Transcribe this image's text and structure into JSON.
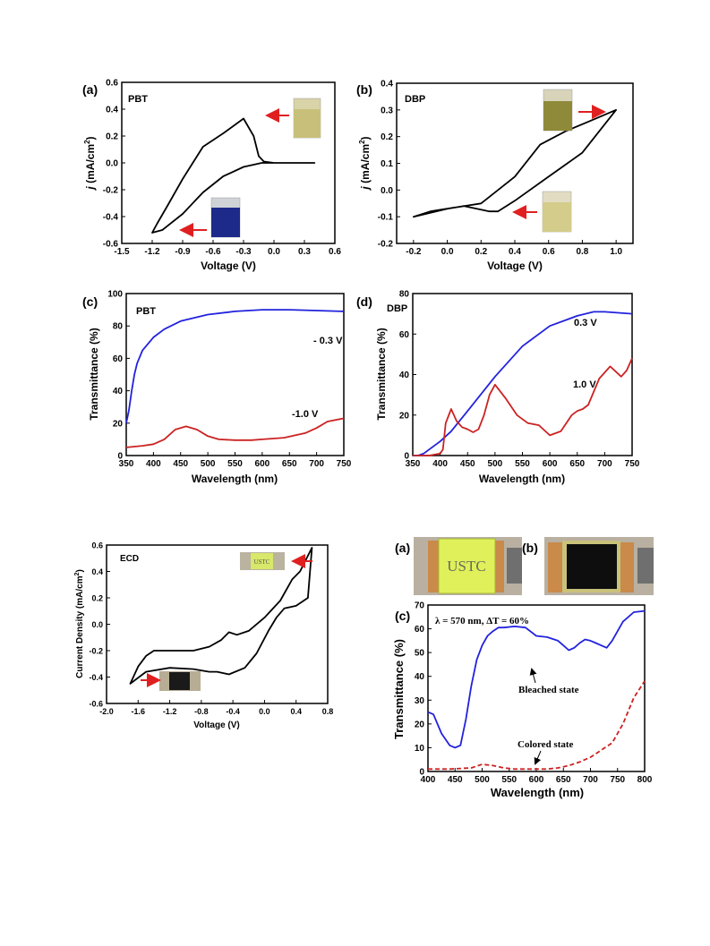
{
  "colors": {
    "axis": "#000000",
    "blue": "#2222dd",
    "red": "#cc2222",
    "arrow": "#e02020"
  },
  "chart_data": [
    {
      "id": "a",
      "type": "line",
      "panel_label": "(a)",
      "sample": "PBT",
      "xlabel": "Voltage (V)",
      "ylabel": "j (mA/cm2)",
      "xlim": [
        -1.5,
        0.6
      ],
      "ylim": [
        -0.6,
        0.6
      ],
      "xticks": [
        -1.5,
        -1.2,
        -0.9,
        -0.6,
        -0.3,
        0.0,
        0.3,
        0.6
      ],
      "xtick_labels": [
        "-1.5",
        "-1.2",
        "-0.9",
        "-0.6",
        "-0.3",
        "0.0",
        "0.3",
        "0.6"
      ],
      "yticks": [
        -0.6,
        -0.4,
        -0.2,
        0.0,
        0.2,
        0.4,
        0.6
      ],
      "ytick_labels": [
        "-0.6",
        "-0.4",
        "-0.2",
        "0.0",
        "0.2",
        "0.4",
        "0.6"
      ],
      "series": [
        {
          "color": "#000000",
          "closed": true,
          "x": [
            0.4,
            0.0,
            -0.1,
            -0.15,
            -0.2,
            -0.3,
            -0.5,
            -0.7,
            -0.9,
            -1.05,
            -1.15,
            -1.2,
            -1.1,
            -0.9,
            -0.7,
            -0.5,
            -0.3,
            -0.12,
            -0.05,
            0.0,
            0.4
          ],
          "y": [
            0.0,
            0.0,
            0.01,
            0.05,
            0.2,
            0.33,
            0.22,
            0.12,
            -0.12,
            -0.32,
            -0.45,
            -0.52,
            -0.5,
            -0.38,
            -0.22,
            -0.1,
            -0.03,
            0.0,
            0.0,
            0.0,
            0.0
          ]
        }
      ]
    },
    {
      "id": "b",
      "type": "line",
      "panel_label": "(b)",
      "sample": "DBP",
      "xlabel": "Voltage (V)",
      "ylabel": "j (mA/cm2)",
      "xlim": [
        -0.3,
        1.1
      ],
      "ylim": [
        -0.2,
        0.4
      ],
      "xticks": [
        -0.2,
        0.0,
        0.2,
        0.4,
        0.6,
        0.8,
        1.0
      ],
      "xtick_labels": [
        "-0.2",
        "0.0",
        "0.2",
        "0.4",
        "0.6",
        "0.8",
        "1.0"
      ],
      "yticks": [
        -0.2,
        -0.1,
        0.0,
        0.1,
        0.2,
        0.3,
        0.4
      ],
      "ytick_labels": [
        "-0.2",
        "-0.1",
        "0.0",
        "0.1",
        "0.2",
        "0.3",
        "0.4"
      ],
      "series": [
        {
          "color": "#000000",
          "closed": true,
          "x": [
            -0.2,
            0.0,
            0.2,
            0.4,
            0.55,
            0.7,
            0.85,
            1.0,
            0.8,
            0.6,
            0.4,
            0.3,
            0.25,
            0.1,
            -0.1,
            -0.2
          ],
          "y": [
            -0.1,
            -0.07,
            -0.05,
            0.05,
            0.17,
            0.22,
            0.26,
            0.3,
            0.14,
            0.05,
            -0.04,
            -0.08,
            -0.08,
            -0.06,
            -0.08,
            -0.1
          ]
        }
      ]
    },
    {
      "id": "c",
      "type": "line",
      "panel_label": "(c)",
      "sample": "PBT",
      "xlabel": "Wavelength (nm)",
      "ylabel": "Transmittance (%)",
      "xlim": [
        350,
        750
      ],
      "ylim": [
        0,
        100
      ],
      "xticks": [
        350,
        400,
        450,
        500,
        550,
        600,
        650,
        700,
        750
      ],
      "xtick_labels": [
        "350",
        "400",
        "450",
        "500",
        "550",
        "600",
        "650",
        "700",
        "750"
      ],
      "yticks": [
        0,
        20,
        40,
        60,
        80,
        100
      ],
      "ytick_labels": [
        "0",
        "20",
        "40",
        "60",
        "80",
        "100"
      ],
      "annotations": [
        "- 0.3 V",
        "-1.0 V"
      ],
      "series": [
        {
          "name": "- 0.3 V",
          "color": "#2222dd",
          "x": [
            350,
            355,
            360,
            365,
            370,
            380,
            400,
            420,
            450,
            500,
            550,
            600,
            650,
            700,
            750
          ],
          "y": [
            20,
            28,
            40,
            50,
            57,
            65,
            73,
            78,
            83,
            87,
            89,
            90,
            90,
            89.5,
            89
          ]
        },
        {
          "name": "-1.0 V",
          "color": "#cc2222",
          "x": [
            350,
            380,
            400,
            420,
            440,
            460,
            480,
            500,
            520,
            550,
            580,
            600,
            640,
            680,
            700,
            720,
            750
          ],
          "y": [
            5,
            6,
            7,
            10,
            16,
            18,
            16,
            12,
            10,
            9.5,
            9.5,
            10,
            11,
            14,
            17,
            21,
            23
          ]
        }
      ]
    },
    {
      "id": "d",
      "type": "line",
      "panel_label": "(d)",
      "sample": "DBP",
      "xlabel": "Wavelength (nm)",
      "ylabel": "Transmittance (%)",
      "xlim": [
        350,
        750
      ],
      "ylim": [
        0,
        80
      ],
      "xticks": [
        350,
        400,
        450,
        500,
        550,
        600,
        650,
        700,
        750
      ],
      "xtick_labels": [
        "350",
        "400",
        "450",
        "500",
        "550",
        "600",
        "650",
        "700",
        "750"
      ],
      "yticks": [
        0,
        20,
        40,
        60,
        80
      ],
      "ytick_labels": [
        "0",
        "20",
        "40",
        "60",
        "80"
      ],
      "annotations": [
        "0.3 V",
        "1.0 V"
      ],
      "series": [
        {
          "name": "0.3 V",
          "color": "#2222dd",
          "x": [
            350,
            360,
            370,
            380,
            400,
            420,
            450,
            500,
            550,
            600,
            650,
            680,
            700,
            750
          ],
          "y": [
            0,
            0,
            1,
            3,
            7,
            12,
            22,
            39,
            54,
            64,
            69,
            71,
            71,
            70
          ]
        },
        {
          "name": "1.0 V",
          "color": "#cc2222",
          "x": [
            350,
            380,
            400,
            405,
            410,
            420,
            430,
            440,
            450,
            460,
            470,
            480,
            490,
            500,
            520,
            540,
            560,
            580,
            600,
            620,
            640,
            650,
            660,
            670,
            690,
            710,
            730,
            740,
            750
          ],
          "y": [
            0,
            0,
            1,
            3,
            16,
            23,
            17,
            14,
            13,
            11.5,
            13,
            20,
            30,
            35,
            28,
            20,
            16,
            15,
            10,
            12,
            20,
            22,
            23,
            25,
            38,
            44,
            39,
            42,
            48
          ]
        }
      ]
    },
    {
      "id": "ecd",
      "type": "line",
      "sample": "ECD",
      "xlabel": "Voltage (V)",
      "ylabel": "Current Density (mA/cm2)",
      "xlim": [
        -2.0,
        0.8
      ],
      "ylim": [
        -0.6,
        0.6
      ],
      "xticks": [
        -2.0,
        -1.6,
        -1.2,
        -0.8,
        -0.4,
        0.0,
        0.4,
        0.8
      ],
      "xtick_labels": [
        "-2.0",
        "-1.6",
        "-1.2",
        "-0.8",
        "-0.4",
        "0.0",
        "0.4",
        "0.8"
      ],
      "yticks": [
        -0.6,
        -0.4,
        -0.2,
        0.0,
        0.2,
        0.4,
        0.6
      ],
      "ytick_labels": [
        "-0.6",
        "-0.4",
        "-0.2",
        "0.0",
        "0.2",
        "0.4",
        "0.6"
      ],
      "series": [
        {
          "color": "#000000",
          "closed": true,
          "x": [
            -1.7,
            -1.6,
            -1.5,
            -1.4,
            -1.2,
            -0.9,
            -0.7,
            -0.55,
            -0.45,
            -0.35,
            -0.2,
            0.0,
            0.2,
            0.35,
            0.45,
            0.6,
            0.55,
            0.4,
            0.25,
            0.15,
            0.05,
            -0.1,
            -0.25,
            -0.45,
            -0.6,
            -0.7,
            -0.9,
            -1.2,
            -1.5,
            -1.7
          ],
          "y": [
            -0.45,
            -0.32,
            -0.24,
            -0.2,
            -0.2,
            -0.2,
            -0.17,
            -0.12,
            -0.06,
            -0.08,
            -0.05,
            0.05,
            0.18,
            0.34,
            0.4,
            0.58,
            0.2,
            0.14,
            0.12,
            0.05,
            -0.05,
            -0.22,
            -0.33,
            -0.38,
            -0.36,
            -0.36,
            -0.34,
            -0.33,
            -0.36,
            -0.45
          ]
        }
      ]
    },
    {
      "id": "c2",
      "type": "line",
      "panel_label": "(c)",
      "xlabel": "Wavelength (nm)",
      "ylabel": "Transmittance (%)",
      "xlim": [
        400,
        800
      ],
      "ylim": [
        0,
        70
      ],
      "xticks": [
        400,
        450,
        500,
        550,
        600,
        650,
        700,
        750,
        800
      ],
      "xtick_labels": [
        "400",
        "450",
        "500",
        "550",
        "600",
        "650",
        "700",
        "750",
        "800"
      ],
      "yticks": [
        0,
        10,
        20,
        30,
        40,
        50,
        60,
        70
      ],
      "ytick_labels": [
        "0",
        "10",
        "20",
        "30",
        "40",
        "50",
        "60",
        "70"
      ],
      "annotation": "λ = 570 nm, ΔT = 60%",
      "series": [
        {
          "name": "Bleached state",
          "color": "#2222dd",
          "x": [
            400,
            410,
            425,
            440,
            450,
            460,
            470,
            480,
            490,
            500,
            510,
            520,
            530,
            540,
            560,
            580,
            600,
            620,
            640,
            650,
            660,
            670,
            680,
            690,
            700,
            710,
            720,
            730,
            740,
            760,
            780,
            800
          ],
          "y": [
            25,
            24,
            16,
            11,
            10,
            11,
            22,
            36,
            47,
            53,
            57,
            59,
            60.5,
            60.5,
            61,
            60.5,
            57,
            56.5,
            55,
            53,
            51,
            52,
            54,
            55.5,
            55,
            54,
            53,
            52,
            55,
            63,
            67,
            67.5
          ]
        },
        {
          "name": "Colored state",
          "color": "#cc2222",
          "x": [
            400,
            440,
            480,
            500,
            520,
            540,
            560,
            580,
            600,
            620,
            640,
            660,
            680,
            700,
            720,
            740,
            760,
            780,
            800
          ],
          "y": [
            1,
            1,
            1.5,
            3,
            2.5,
            1.5,
            1,
            1,
            1,
            1,
            1.5,
            2.5,
            4,
            6,
            9,
            12,
            20,
            31,
            38
          ]
        }
      ]
    }
  ],
  "photos": {
    "a_label": "(a)",
    "b_label": "(b)",
    "device_text": "USTC",
    "ecd_inset_text": "USTC"
  },
  "curve_labels": {
    "bleached": "Bleached state",
    "colored": "Colored state"
  }
}
